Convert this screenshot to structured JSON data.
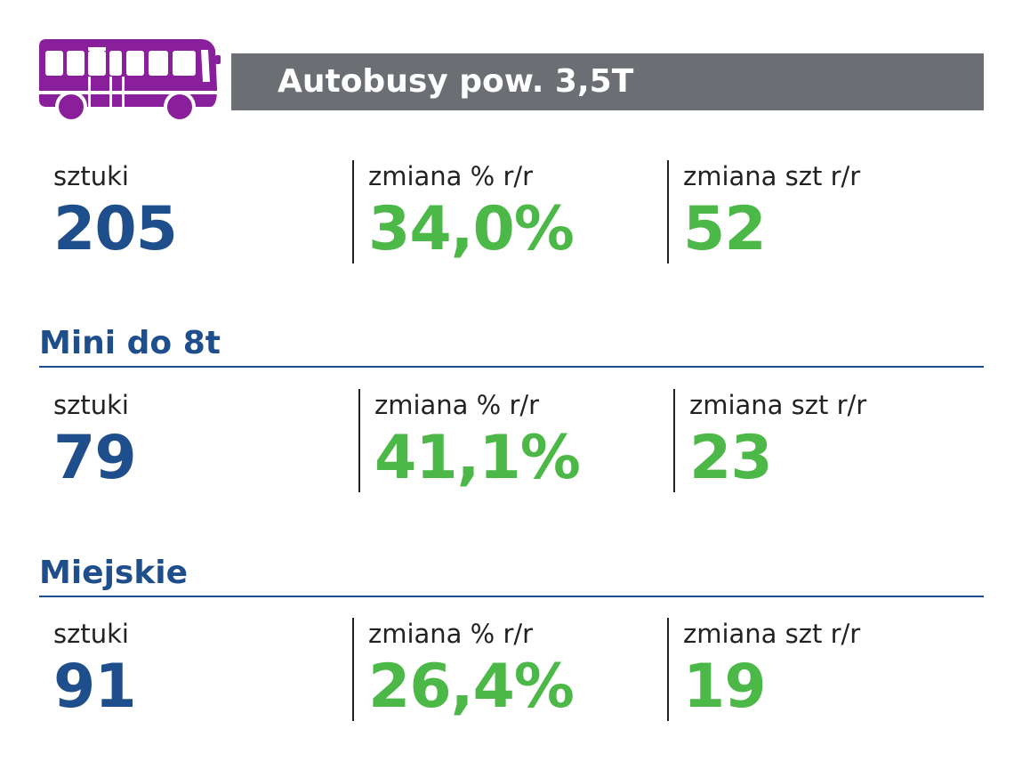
{
  "header": {
    "icon": "bus-icon",
    "title": "Autobusy pow. 3,5T",
    "bar_color": "#6b6e73",
    "icon_color": "#8a1f9c"
  },
  "colors": {
    "blue": "#1f4e8c",
    "green": "#4cb848"
  },
  "sections": [
    {
      "heading": "",
      "stats": [
        {
          "label": "sztuki",
          "value": "205"
        },
        {
          "label": "zmiana % r/r",
          "value": "34,0%"
        },
        {
          "label": "zmiana szt r/r",
          "value": "52"
        }
      ]
    },
    {
      "heading": "Mini do 8t",
      "stats": [
        {
          "label": "sztuki",
          "value": "79"
        },
        {
          "label": "zmiana % r/r",
          "value": "41,1%"
        },
        {
          "label": "zmiana szt r/r",
          "value": "23"
        }
      ]
    },
    {
      "heading": "Miejskie",
      "stats": [
        {
          "label": "sztuki",
          "value": "91"
        },
        {
          "label": "zmiana % r/r",
          "value": "26,4%"
        },
        {
          "label": "zmiana szt r/r",
          "value": "19"
        }
      ]
    }
  ]
}
